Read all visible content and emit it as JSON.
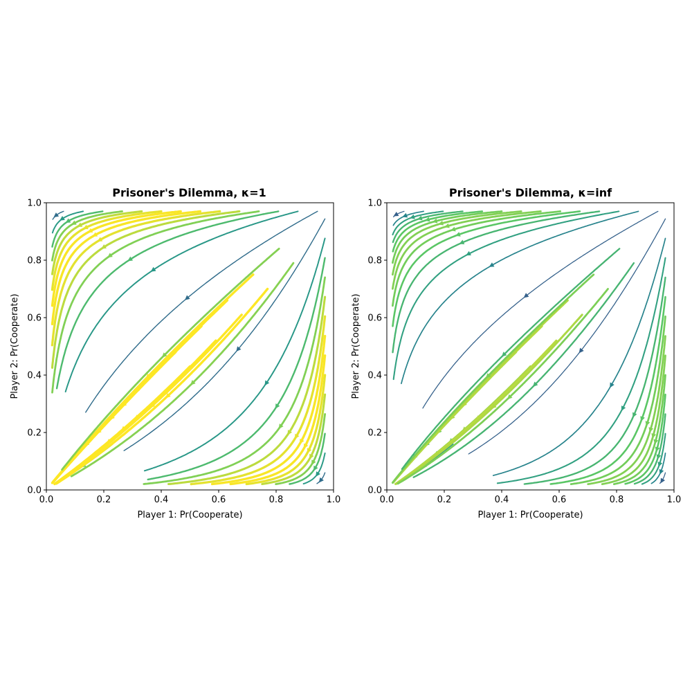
{
  "figure": {
    "background": "#ffffff",
    "colormap": [
      "#440154",
      "#3b528b",
      "#21918c",
      "#5ec962",
      "#fde725"
    ]
  },
  "chart_data": [
    {
      "type": "streamplot",
      "title": "Prisoner's Dilemma, κ=1",
      "xlabel": "Player 1: Pr(Cooperate)",
      "ylabel": "Player 2: Pr(Cooperate)",
      "xlim": [
        0,
        1
      ],
      "ylim": [
        0,
        1
      ],
      "xticks": [
        "0.0",
        "0.2",
        "0.4",
        "0.6",
        "0.8",
        "1.0"
      ],
      "yticks": [
        "0.0",
        "0.2",
        "0.4",
        "0.6",
        "0.8",
        "1.0"
      ],
      "grid": false,
      "field": {
        "kappa": 1,
        "flow": "toward (0,0) — mutual defection"
      }
    },
    {
      "type": "streamplot",
      "title": "Prisoner's Dilemma, κ=inf",
      "xlabel": "Player 1: Pr(Cooperate)",
      "ylabel": "Player 2: Pr(Cooperate)",
      "xlim": [
        0,
        1
      ],
      "ylim": [
        0,
        1
      ],
      "xticks": [
        "0.0",
        "0.2",
        "0.4",
        "0.6",
        "0.8",
        "1.0"
      ],
      "yticks": [
        "0.0",
        "0.2",
        "0.4",
        "0.6",
        "0.8",
        "1.0"
      ],
      "grid": false,
      "field": {
        "kappa": "inf",
        "flow": "toward (0,0) — mutual defection"
      }
    }
  ]
}
